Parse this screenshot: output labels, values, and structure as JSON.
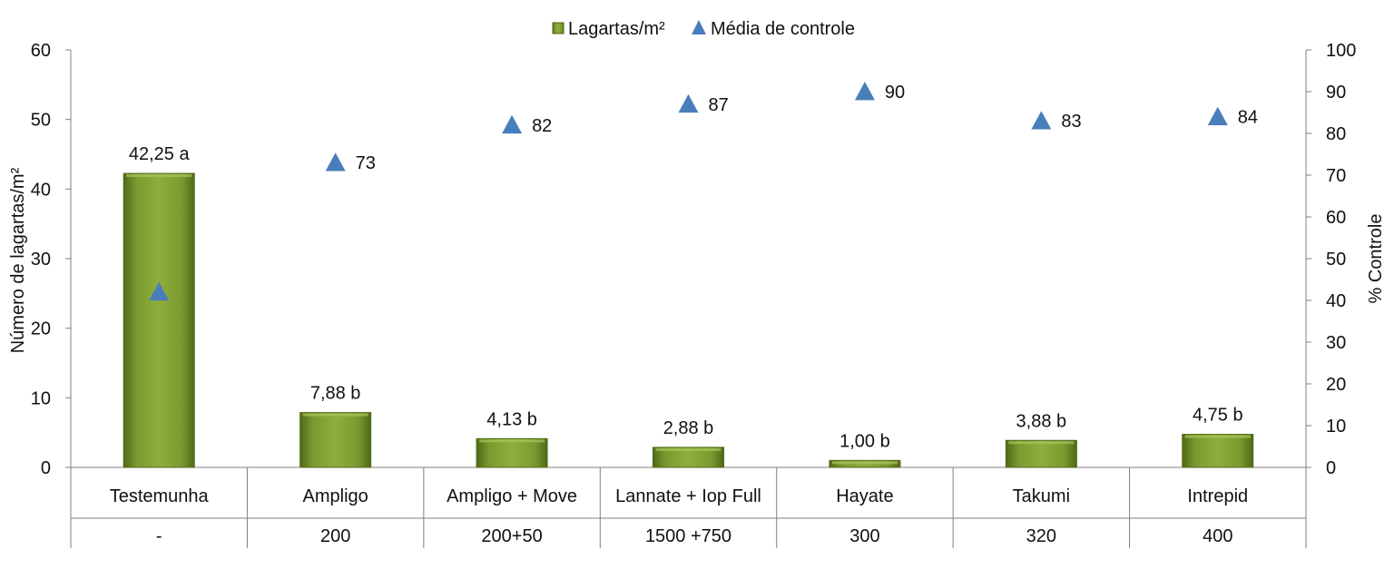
{
  "chart_data": {
    "type": "bar",
    "categories": [
      "Testemunha",
      "Ampligo",
      "Ampligo + Move",
      "Lannate + Iop Full",
      "Hayate",
      "Takumi",
      "Intrepid"
    ],
    "doses": [
      "-",
      "200",
      "200+50",
      "1500 +750",
      "300",
      "320",
      "400"
    ],
    "series": [
      {
        "name": "Lagartas/m²",
        "kind": "bar",
        "axis": "left",
        "values": [
          42.25,
          7.88,
          4.13,
          2.88,
          1.0,
          3.88,
          4.75
        ],
        "labels": [
          "42,25 a",
          "7,88 b",
          "4,13 b",
          "2,88 b",
          "1,00 b",
          "3,88 b",
          "4,75 b"
        ]
      },
      {
        "name": "Média de controle",
        "kind": "marker",
        "marker": "triangle",
        "axis": "right",
        "values": [
          42,
          73,
          82,
          87,
          90,
          83,
          84
        ],
        "labels": [
          "",
          "73",
          "82",
          "87",
          "90",
          "83",
          "84"
        ]
      }
    ],
    "ylabel": "Número de lagartas/m²",
    "y2label": "% Controle",
    "ylim": [
      0,
      60
    ],
    "y2lim": [
      0,
      100
    ],
    "yticks": [
      0,
      10,
      20,
      30,
      40,
      50,
      60
    ],
    "y2ticks": [
      0,
      10,
      20,
      30,
      40,
      50,
      60,
      70,
      80,
      90,
      100
    ],
    "grid": false,
    "legend_position": "top-center",
    "colors": {
      "bar": "#6e8c2a",
      "bar_light": "#8fae3e",
      "bar_dark": "#4e6a17",
      "marker": "#4a7ebb",
      "axis": "#808080"
    }
  }
}
